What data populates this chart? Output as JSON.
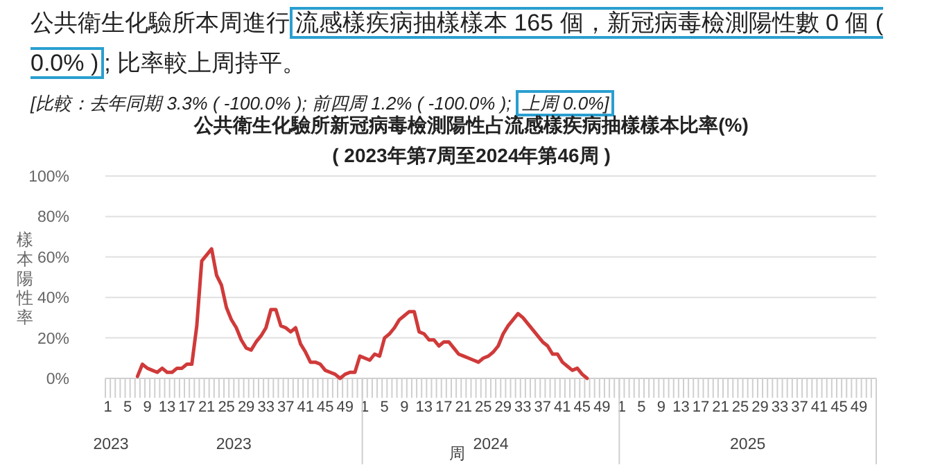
{
  "chart_data": {
    "type": "line",
    "title": "公共衛生化驗所新冠病毒檢測陽性占流感樣疾病抽樣樣本比率(%)",
    "subtitle": "( 2023年第7周至2024年第46周 )",
    "xlabel": "周",
    "ylabel": "樣本陽性率",
    "annotations": [
      "公共衛生化驗所本周進行",
      "流感樣疾病抽樣樣本 165 個，新冠病毒檢測陽性數 0 個 ( 0.0% )",
      "; 比率較上周持平。",
      "[比較：去年同期 3.3% ( -100.0% ); 前四周 1.2% ( -100.0% ); ",
      "上周 0.0%]",
      "2023",
      "2023",
      "2024",
      "2025"
    ],
    "categories": [
      "1",
      null,
      null,
      null,
      "5",
      null,
      null,
      null,
      "9",
      null,
      null,
      null,
      "13",
      null,
      null,
      null,
      "17",
      null,
      null,
      null,
      "21",
      null,
      null,
      null,
      "25",
      null,
      null,
      null,
      "29",
      null,
      null,
      null,
      "33",
      null,
      null,
      null,
      "37",
      null,
      null,
      null,
      "41",
      null,
      null,
      null,
      "45",
      null,
      null,
      null,
      "49",
      null,
      null,
      null,
      "1",
      null,
      null,
      null,
      "5",
      null,
      null,
      null,
      "9",
      null,
      null,
      null,
      "13",
      null,
      null,
      null,
      "17",
      null,
      null,
      null,
      "21",
      null,
      null,
      null,
      "25",
      null,
      null,
      null,
      "29",
      null,
      null,
      null,
      "33",
      null,
      null,
      null,
      "37",
      null,
      null,
      null,
      "41",
      null,
      null,
      null,
      "45",
      null,
      null,
      null,
      "49",
      null,
      null,
      null,
      "1",
      null,
      null,
      null,
      "5",
      null,
      null,
      null,
      "9",
      null,
      null,
      null,
      "13",
      null,
      null,
      null,
      "17",
      null,
      null,
      null,
      "21",
      null,
      null,
      null,
      "25",
      null,
      null,
      null,
      "29",
      null,
      null,
      null,
      "33",
      null,
      null,
      null,
      "37",
      null,
      null,
      null,
      "41",
      null,
      null,
      null,
      "45",
      null,
      null,
      null,
      "49",
      null,
      null,
      null
    ],
    "series": [
      {
        "color": "#d03a3a",
        "values": [
          null,
          null,
          null,
          null,
          null,
          null,
          1,
          7,
          5,
          4,
          3,
          5,
          3,
          3,
          5,
          5,
          7,
          7,
          26,
          58,
          61,
          64,
          51,
          46,
          35,
          29,
          25,
          19,
          15,
          14,
          18,
          21,
          25,
          34,
          34,
          26,
          25,
          23,
          25,
          17,
          13,
          8,
          8,
          7,
          4,
          3,
          2,
          0,
          2,
          3,
          3,
          11,
          10,
          9,
          12,
          11,
          20,
          22,
          25,
          29,
          31,
          33,
          33,
          23,
          22,
          19,
          19,
          16,
          18,
          18,
          15,
          12,
          11,
          10,
          9,
          8,
          10,
          11,
          13,
          16,
          22,
          26,
          29,
          32,
          30,
          27,
          24,
          21,
          18,
          16,
          12,
          12,
          8,
          6,
          4,
          5,
          2,
          0,
          null,
          null,
          null,
          null,
          null,
          null,
          null,
          null,
          null,
          null,
          null,
          null,
          null,
          null,
          null,
          null,
          null,
          null,
          null,
          null,
          null,
          null,
          null,
          null,
          null,
          null,
          null,
          null,
          null,
          null,
          null,
          null,
          null,
          null,
          null,
          null,
          null,
          null,
          null,
          null,
          null,
          null,
          null,
          null,
          null,
          null,
          null,
          null,
          null,
          null,
          null,
          null,
          null,
          null,
          null,
          null,
          null,
          null
        ]
      }
    ],
    "ylim": [
      0,
      100
    ],
    "yticks": [
      {
        "value": 0,
        "label": "0%"
      },
      {
        "value": 20,
        "label": "20%"
      },
      {
        "value": 40,
        "label": "40%"
      },
      {
        "value": 60,
        "label": "60%"
      },
      {
        "value": 80,
        "label": "80%"
      },
      {
        "value": 100,
        "label": "100%"
      }
    ],
    "grid": "y",
    "marker": "none",
    "line_style": "solid"
  }
}
